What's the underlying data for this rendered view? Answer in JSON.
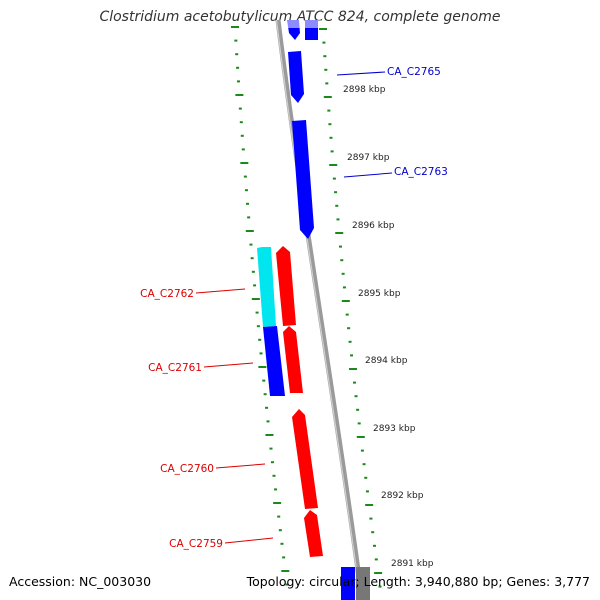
{
  "title": "Clostridium acetobutylicum ATCC 824, complete genome",
  "accession_text": "Accession: NC_003030",
  "summary_text": "Topology: circular; Length: 3,940,880 bp; Genes: 3,777",
  "colors": {
    "backbone": "#8c8c8c",
    "plus_strand": "#0000ff",
    "minus_strand": "#ff0000",
    "cyan_feature": "#00e5ee",
    "tick_marks": "#1a8a1a",
    "plus_label": "#0000cc",
    "minus_label": "#dd0000"
  },
  "ticks": [
    {
      "label": "2898 kbp"
    },
    {
      "label": "2897 kbp"
    },
    {
      "label": "2896 kbp"
    },
    {
      "label": "2895 kbp"
    },
    {
      "label": "2894 kbp"
    },
    {
      "label": "2893 kbp"
    },
    {
      "label": "2892 kbp"
    },
    {
      "label": "2891 kbp"
    }
  ],
  "gene_labels": [
    {
      "name": "CA_C2765",
      "strand": "plus"
    },
    {
      "name": "CA_C2763",
      "strand": "plus"
    },
    {
      "name": "CA_C2762",
      "strand": "minus"
    },
    {
      "name": "CA_C2761",
      "strand": "minus"
    },
    {
      "name": "CA_C2760",
      "strand": "minus"
    },
    {
      "name": "CA_C2759",
      "strand": "minus"
    }
  ]
}
